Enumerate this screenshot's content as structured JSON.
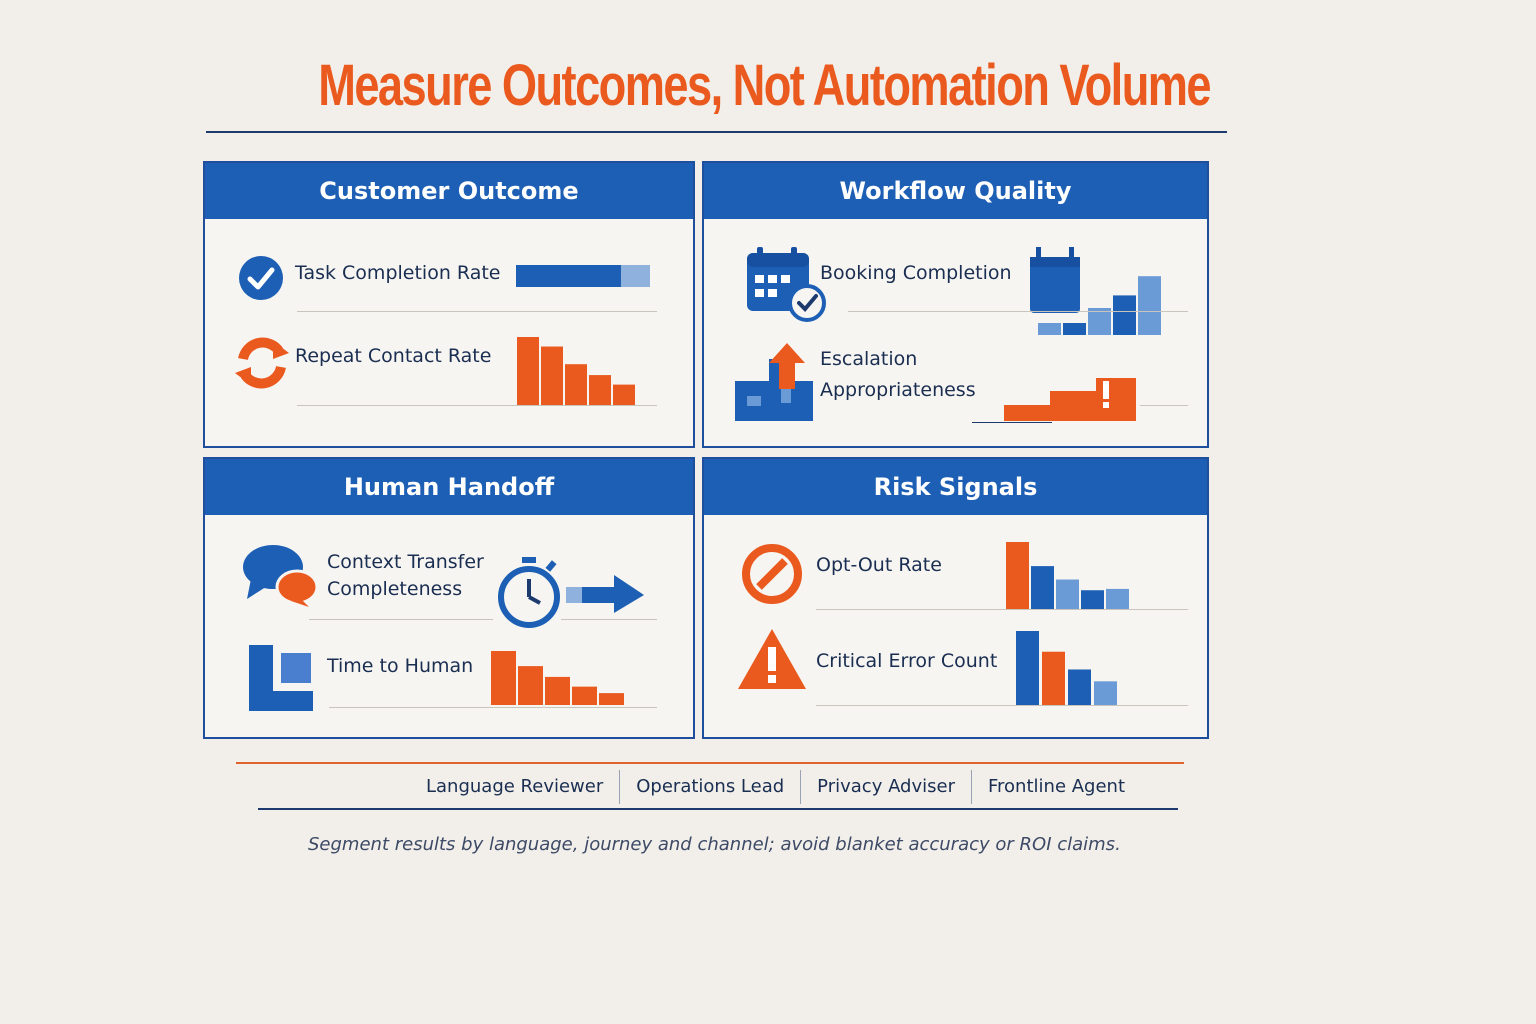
{
  "title": "Measure Outcomes, Not Automation Volume",
  "colors": {
    "blue": "#1d5fb5",
    "light_blue": "#6b9bd6",
    "orange": "#ea5a1f",
    "navy": "#1c3a6e",
    "background": "#f2efea"
  },
  "panels": [
    {
      "heading": "Customer Outcome",
      "metrics": [
        {
          "label": "Task Completion Rate",
          "icon": "check-circle-icon",
          "visual": "progress-bar",
          "progress_fraction": 0.78
        },
        {
          "label": "Repeat Contact Rate",
          "icon": "refresh-icon",
          "visual": "declining-bars",
          "bar_values": [
            1.0,
            0.86,
            0.6,
            0.44,
            0.3
          ]
        }
      ]
    },
    {
      "heading": "Workflow Quality",
      "metrics": [
        {
          "label": "Booking Completion",
          "icon": "calendar-check-icon",
          "visual": "rising-bars",
          "bar_values": [
            0.2,
            0.2,
            0.45,
            0.66,
            0.98
          ]
        },
        {
          "label_lines": [
            "Escalation",
            "Appropriateness"
          ],
          "icon": "escalation-arrow-icon",
          "visual": "step-bars-warning",
          "bar_values": [
            0.32,
            0.6,
            0.86
          ]
        }
      ]
    },
    {
      "heading": "Human Handoff",
      "metrics": [
        {
          "label_lines": [
            "Context Transfer",
            "Completeness"
          ],
          "icon": "chat-bubbles-icon",
          "visual": "stopwatch-arrow"
        },
        {
          "label": "Time to Human",
          "icon": "handoff-window-icon",
          "visual": "declining-bars",
          "bar_values": [
            1.0,
            0.72,
            0.52,
            0.34,
            0.22
          ]
        }
      ]
    },
    {
      "heading": "Risk Signals",
      "metrics": [
        {
          "label": "Opt-Out Rate",
          "icon": "prohibited-icon",
          "visual": "declining-bars",
          "bar_values": [
            1.0,
            0.64,
            0.44,
            0.28,
            0.3
          ]
        },
        {
          "label": "Critical Error Count",
          "icon": "warning-triangle-icon",
          "visual": "declining-bars",
          "bar_values": [
            1.0,
            0.72,
            0.48,
            0.32
          ]
        }
      ]
    }
  ],
  "roles": [
    "Language Reviewer",
    "Operations Lead",
    "Privacy Adviser",
    "Frontline Agent"
  ],
  "footnote": "Segment results by language, journey and channel; avoid blanket accuracy or ROI claims."
}
